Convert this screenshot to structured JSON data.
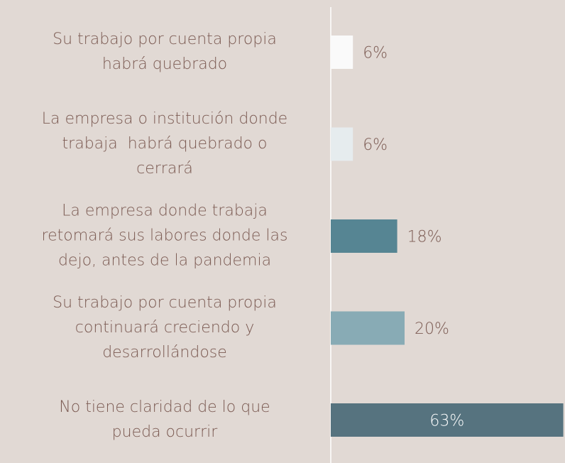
{
  "chart_data": {
    "type": "bar",
    "orientation": "horizontal",
    "categories": [
      [
        "Su trabajo por cuenta propia",
        "habrá quebrado"
      ],
      [
        "La empresa o institución donde",
        "trabaja  habrá quebrado o",
        "cerrará"
      ],
      [
        "La empresa donde trabaja",
        "retomará sus labores donde las",
        "dejo, antes de la pandemia"
      ],
      [
        "Su trabajo por cuenta propia",
        "continuará creciendo y",
        "desarrollándose"
      ],
      [
        "No tiene claridad de lo que",
        "pueda ocurrir"
      ]
    ],
    "values": [
      6,
      6,
      18,
      20,
      63
    ],
    "value_labels": [
      "6%",
      "6%",
      "18%",
      "20%",
      "63%"
    ],
    "colors": [
      "#fafafa",
      "#e6ecee",
      "#568593",
      "#88abb5",
      "#56737f"
    ]
  }
}
